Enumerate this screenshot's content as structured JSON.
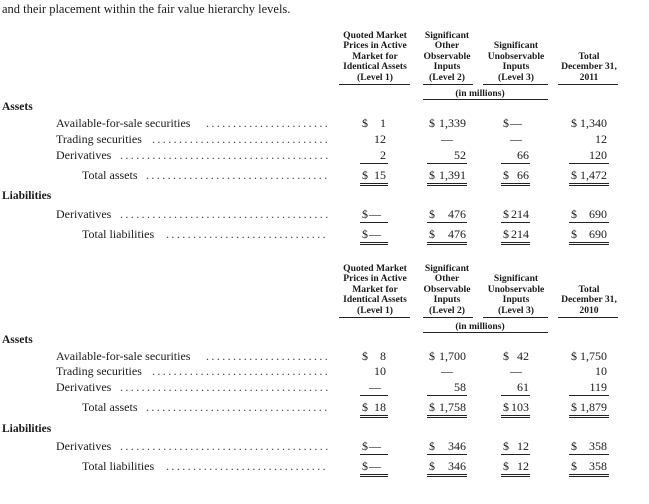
{
  "intro_text": "and their placement within the fair value hierarchy levels.",
  "columns": {
    "level1": [
      "Quoted Market",
      "Prices in Active",
      "Market for",
      "Identical Assets",
      "(Level 1)"
    ],
    "level2": [
      "Significant",
      "Other",
      "Observable",
      "Inputs",
      "(Level 2)"
    ],
    "level3": [
      "Significant",
      "Unobservable",
      "Inputs",
      "(Level 3)"
    ],
    "total_2011": [
      "Total",
      "December 31,",
      "2011"
    ],
    "total_2010": [
      "Total",
      "December 31,",
      "2010"
    ]
  },
  "units_label": "(in millions)",
  "table_2011": {
    "assets_heading": "Assets",
    "liabilities_heading": "Liabilities",
    "rows": {
      "afs": {
        "label": "Available-for-sale securities",
        "l1": "1",
        "l2": "1,339",
        "l3": "—",
        "total": "1,340"
      },
      "trading": {
        "label": "Trading securities",
        "l1": "12",
        "l2": "—",
        "l3": "—",
        "total": "12"
      },
      "derivatives": {
        "label": "Derivatives",
        "l1": "2",
        "l2": "52",
        "l3": "66",
        "total": "120"
      },
      "total_assets": {
        "label": "Total assets",
        "l1": "15",
        "l2": "1,391",
        "l3": "66",
        "total": "1,472"
      },
      "liab_derivatives": {
        "label": "Derivatives",
        "l1": "—",
        "l2": "476",
        "l3": "214",
        "total": "690"
      },
      "total_liabilities": {
        "label": "Total liabilities",
        "l1": "—",
        "l2": "476",
        "l3": "214",
        "total": "690"
      }
    }
  },
  "table_2010": {
    "assets_heading": "Assets",
    "liabilities_heading": "Liabilities",
    "rows": {
      "afs": {
        "label": "Available-for-sale securities",
        "l1": "8",
        "l2": "1,700",
        "l3": "42",
        "total": "1,750"
      },
      "trading": {
        "label": "Trading securities",
        "l1": "10",
        "l2": "—",
        "l3": "—",
        "total": "10"
      },
      "derivatives": {
        "label": "Derivatives",
        "l1": "—",
        "l2": "58",
        "l3": "61",
        "total": "119"
      },
      "total_assets": {
        "label": "Total assets",
        "l1": "18",
        "l2": "1,758",
        "l3": "103",
        "total": "1,879"
      },
      "liab_derivatives": {
        "label": "Derivatives",
        "l1": "—",
        "l2": "346",
        "l3": "12",
        "total": "358"
      },
      "total_liabilities": {
        "label": "Total liabilities",
        "l1": "—",
        "l2": "346",
        "l3": "12",
        "total": "358"
      }
    }
  }
}
